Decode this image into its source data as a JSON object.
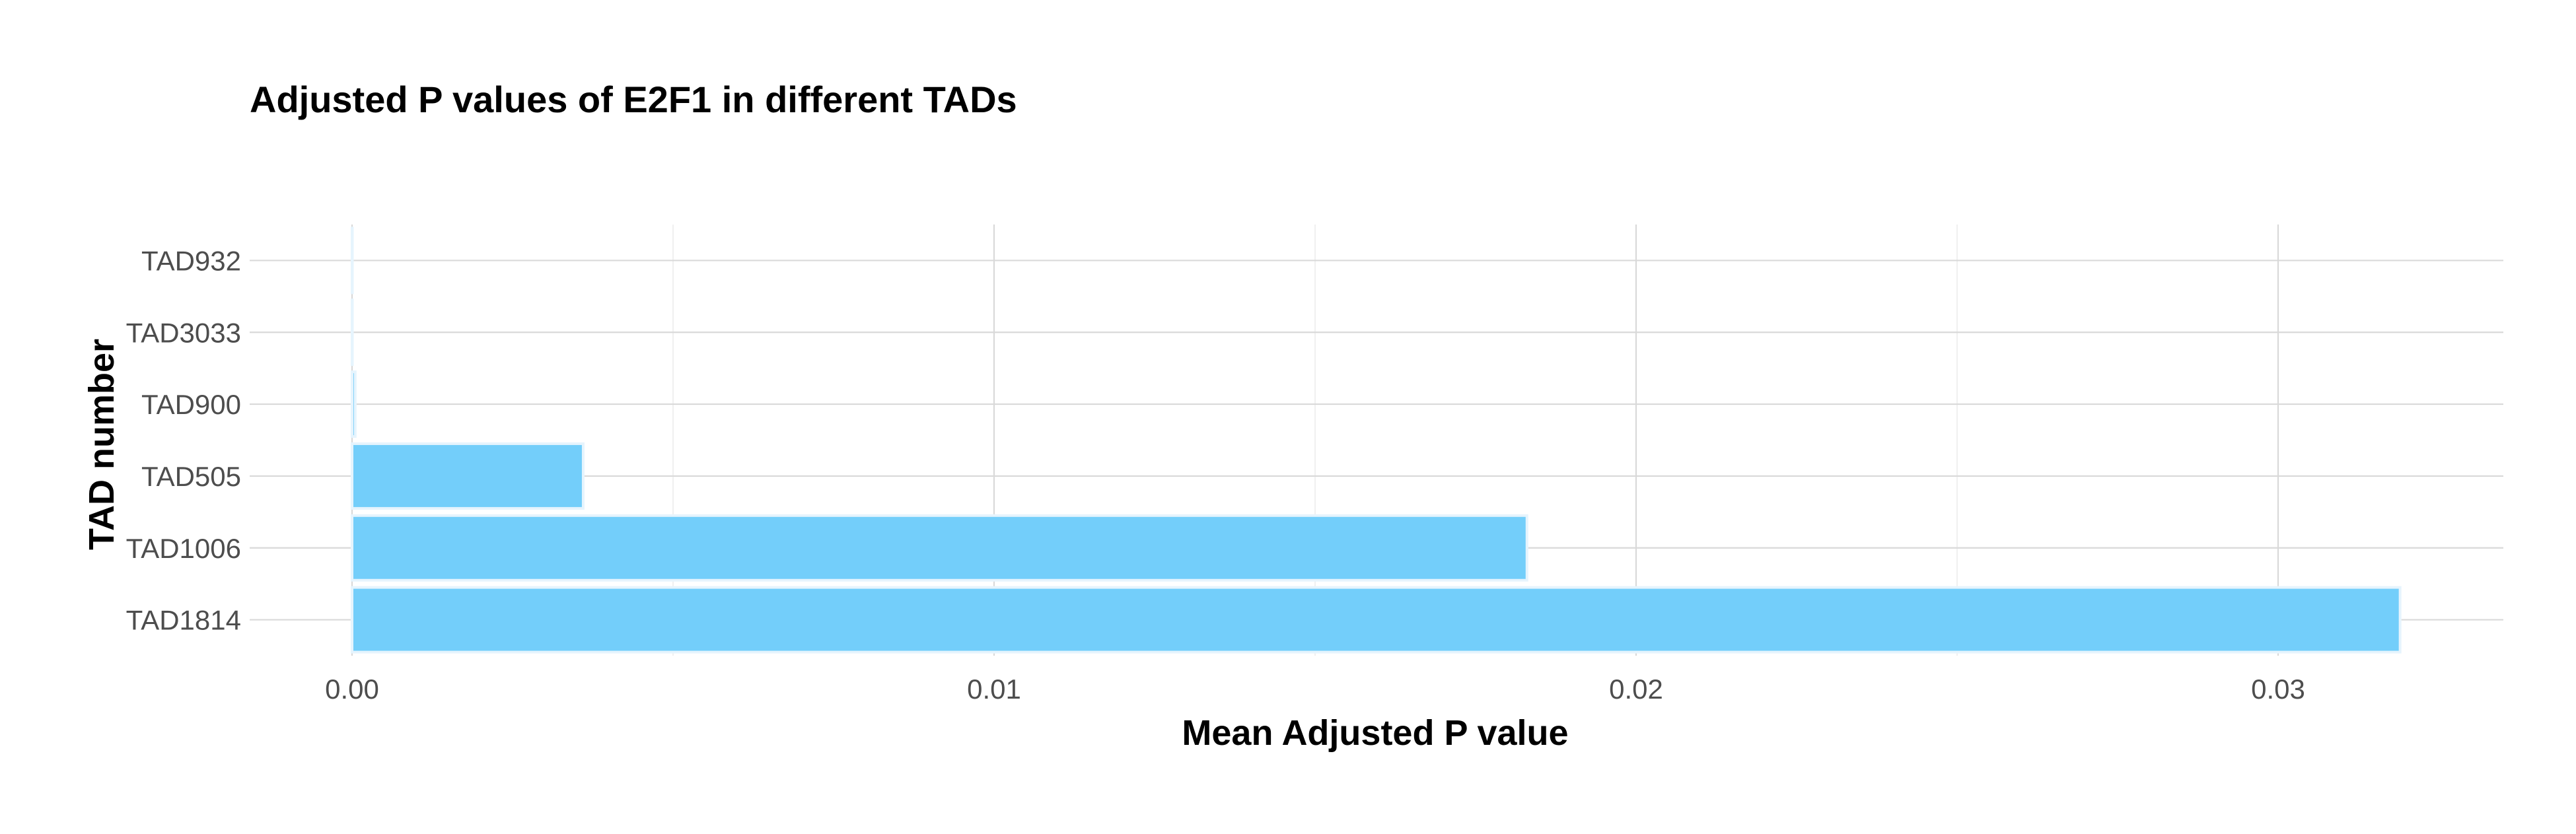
{
  "chart_data": {
    "type": "bar",
    "orientation": "horizontal",
    "title": "Adjusted P values of E2F1 in different TADs",
    "xlabel": "Mean Adjusted P value",
    "ylabel": "TAD number",
    "categories": [
      "TAD1814",
      "TAD1006",
      "TAD505",
      "TAD900",
      "TAD3033",
      "TAD932"
    ],
    "values": [
      0.0319,
      0.0183,
      0.0036,
      5e-05,
      5e-06,
      1e-06
    ],
    "xlim": [
      0,
      0.0335
    ],
    "xticks": [
      0,
      0.01,
      0.02,
      0.03
    ],
    "xtick_labels": [
      "0.00",
      "0.01",
      "0.02",
      "0.03"
    ],
    "grid": true,
    "legend": "none",
    "colors": {
      "bar": "#73cefa",
      "bar_border": "#e6f4fd"
    }
  }
}
